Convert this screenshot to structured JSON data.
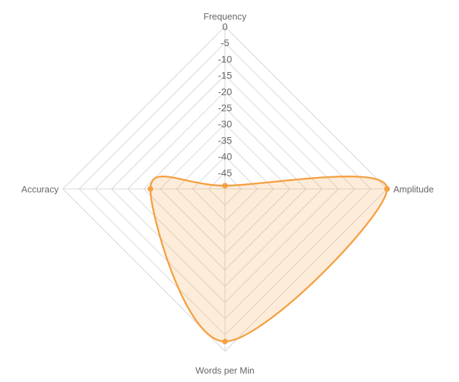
{
  "chart_data": {
    "type": "radar",
    "axes": [
      "Frequency",
      "Amplitude",
      "Words per Min",
      "Accuracy"
    ],
    "radial_ticks": [
      "0",
      "-5",
      "-10",
      "-15",
      "-20",
      "-25",
      "-30",
      "-35",
      "-40",
      "-45"
    ],
    "rlim": [
      -50,
      0
    ],
    "series": [
      {
        "values": [
          -49,
          0,
          -3,
          -27
        ]
      }
    ],
    "grid": true,
    "legend": "none",
    "colors": {
      "series": "#f5a042",
      "grid": "#d6d6d6",
      "text": "#666666"
    }
  }
}
